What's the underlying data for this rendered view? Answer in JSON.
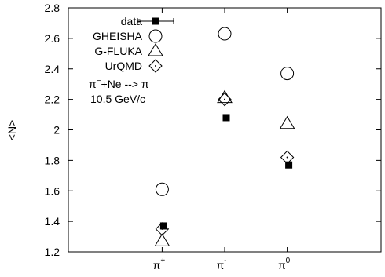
{
  "chart_data": {
    "type": "scatter",
    "ylabel": "<N>",
    "xlabel": "",
    "ylim": [
      1.2,
      2.8
    ],
    "y_ticks": [
      "1.2",
      "1.4",
      "1.6",
      "1.8",
      "2",
      "2.2",
      "2.4",
      "2.6",
      "2.8"
    ],
    "x_categories": [
      {
        "base": "π",
        "sup": "+"
      },
      {
        "base": "π",
        "sup": "-"
      },
      {
        "base": "π",
        "sup": "0"
      }
    ],
    "series": [
      {
        "name": "data",
        "marker": "filled-square",
        "values": [
          1.37,
          2.08,
          1.77
        ]
      },
      {
        "name": "GHEISHA",
        "marker": "circle",
        "values": [
          1.61,
          2.63,
          2.37
        ]
      },
      {
        "name": "G-FLUKA",
        "marker": "triangle",
        "values": [
          1.27,
          2.21,
          2.04
        ]
      },
      {
        "name": "UrQMD",
        "marker": "diamond",
        "values": [
          1.35,
          2.2,
          1.82
        ]
      }
    ],
    "legend_position": "top-left",
    "annotation": {
      "line1": "π−+Ne --> π",
      "line2": "10.5 GeV/c"
    },
    "grid": false
  }
}
